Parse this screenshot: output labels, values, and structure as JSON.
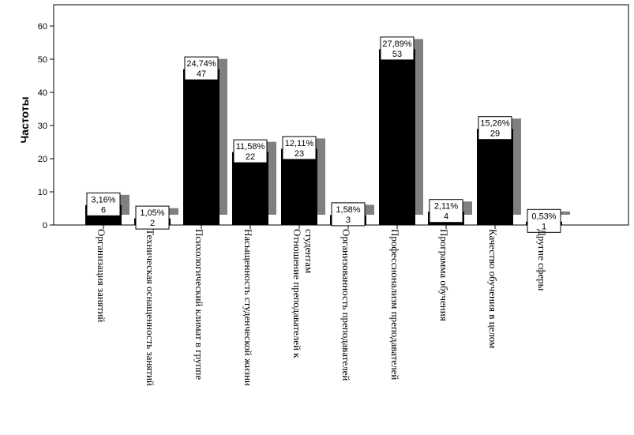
{
  "chart_data": {
    "type": "bar",
    "ylabel": "Частоты",
    "xlabel": "",
    "ylim": [
      0,
      65
    ],
    "yticks": [
      0,
      10,
      20,
      30,
      40,
      50,
      60
    ],
    "grid": false,
    "style": "3d-shadow",
    "colors": {
      "bar": "#000000",
      "shadow": "#808080",
      "label_box": "#ffffff"
    },
    "categories": [
      [
        "Организация занятий"
      ],
      [
        "Техническая оснащенность занятий"
      ],
      [
        "Психологический климат в группе"
      ],
      [
        "Насыщенность студенческой жизни"
      ],
      [
        "Отношение преподавателей к",
        "студентам"
      ],
      [
        "Организованность преподавателей"
      ],
      [
        "Профессионализм преподавателей"
      ],
      [
        "Программа обучения"
      ],
      [
        "Качество обучения в целом"
      ],
      [
        "Другие сферы"
      ]
    ],
    "values": [
      6,
      2,
      47,
      22,
      23,
      3,
      53,
      4,
      29,
      1
    ],
    "percent_labels": [
      "3,16%",
      "1,05%",
      "24,74%",
      "11,58%",
      "12,11%",
      "1,58%",
      "27,89%",
      "2,11%",
      "15,26%",
      "0,53%"
    ],
    "count_labels": [
      "6",
      "2",
      "47",
      "22",
      "23",
      "3",
      "53",
      "4",
      "29",
      "1"
    ]
  }
}
